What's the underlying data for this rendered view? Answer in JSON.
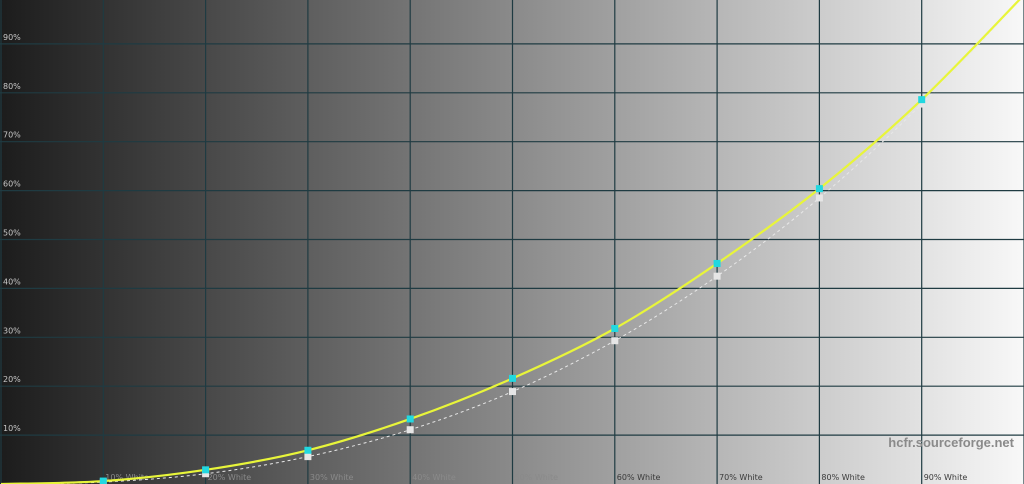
{
  "chart_data": {
    "type": "line",
    "title": "",
    "xlabel": "",
    "ylabel": "",
    "x_categories": [
      "",
      "10% White",
      "20% White",
      "30% White",
      "40% White",
      "50% White",
      "60% White",
      "70% White",
      "80% White",
      "90% White",
      ""
    ],
    "x": [
      0,
      10,
      20,
      30,
      40,
      50,
      60,
      70,
      80,
      90,
      100
    ],
    "xlim": [
      0,
      100
    ],
    "ylim": [
      0,
      100
    ],
    "y_ticks": [
      "10%",
      "20%",
      "30%",
      "40%",
      "50%",
      "60%",
      "70%",
      "80%",
      "90%"
    ],
    "y_tick_values": [
      10,
      20,
      30,
      40,
      50,
      60,
      70,
      80,
      90
    ],
    "grid": true,
    "background": "grayscale gradient black to white",
    "series": [
      {
        "style": "solid yellow line with cyan markers",
        "color": "#e8f53a",
        "marker_color": "#22d8e0",
        "values": [
          0,
          0.6,
          2.9,
          6.9,
          13.3,
          21.6,
          31.8,
          45.1,
          60.4,
          78.6,
          100
        ]
      },
      {
        "style": "dashed white reference with white markers",
        "color": "#e8e8e8",
        "marker_color": "#e6e6e6",
        "values": [
          0,
          0.4,
          2.1,
          5.6,
          11.1,
          18.9,
          29.3,
          42.5,
          58.5,
          77.7,
          100
        ]
      }
    ],
    "watermark": "hcfr.sourceforge.net",
    "colors": {
      "grid": "#1f3b42",
      "bg_left": "#1c1c1c",
      "bg_right": "#f8f8f8"
    }
  }
}
